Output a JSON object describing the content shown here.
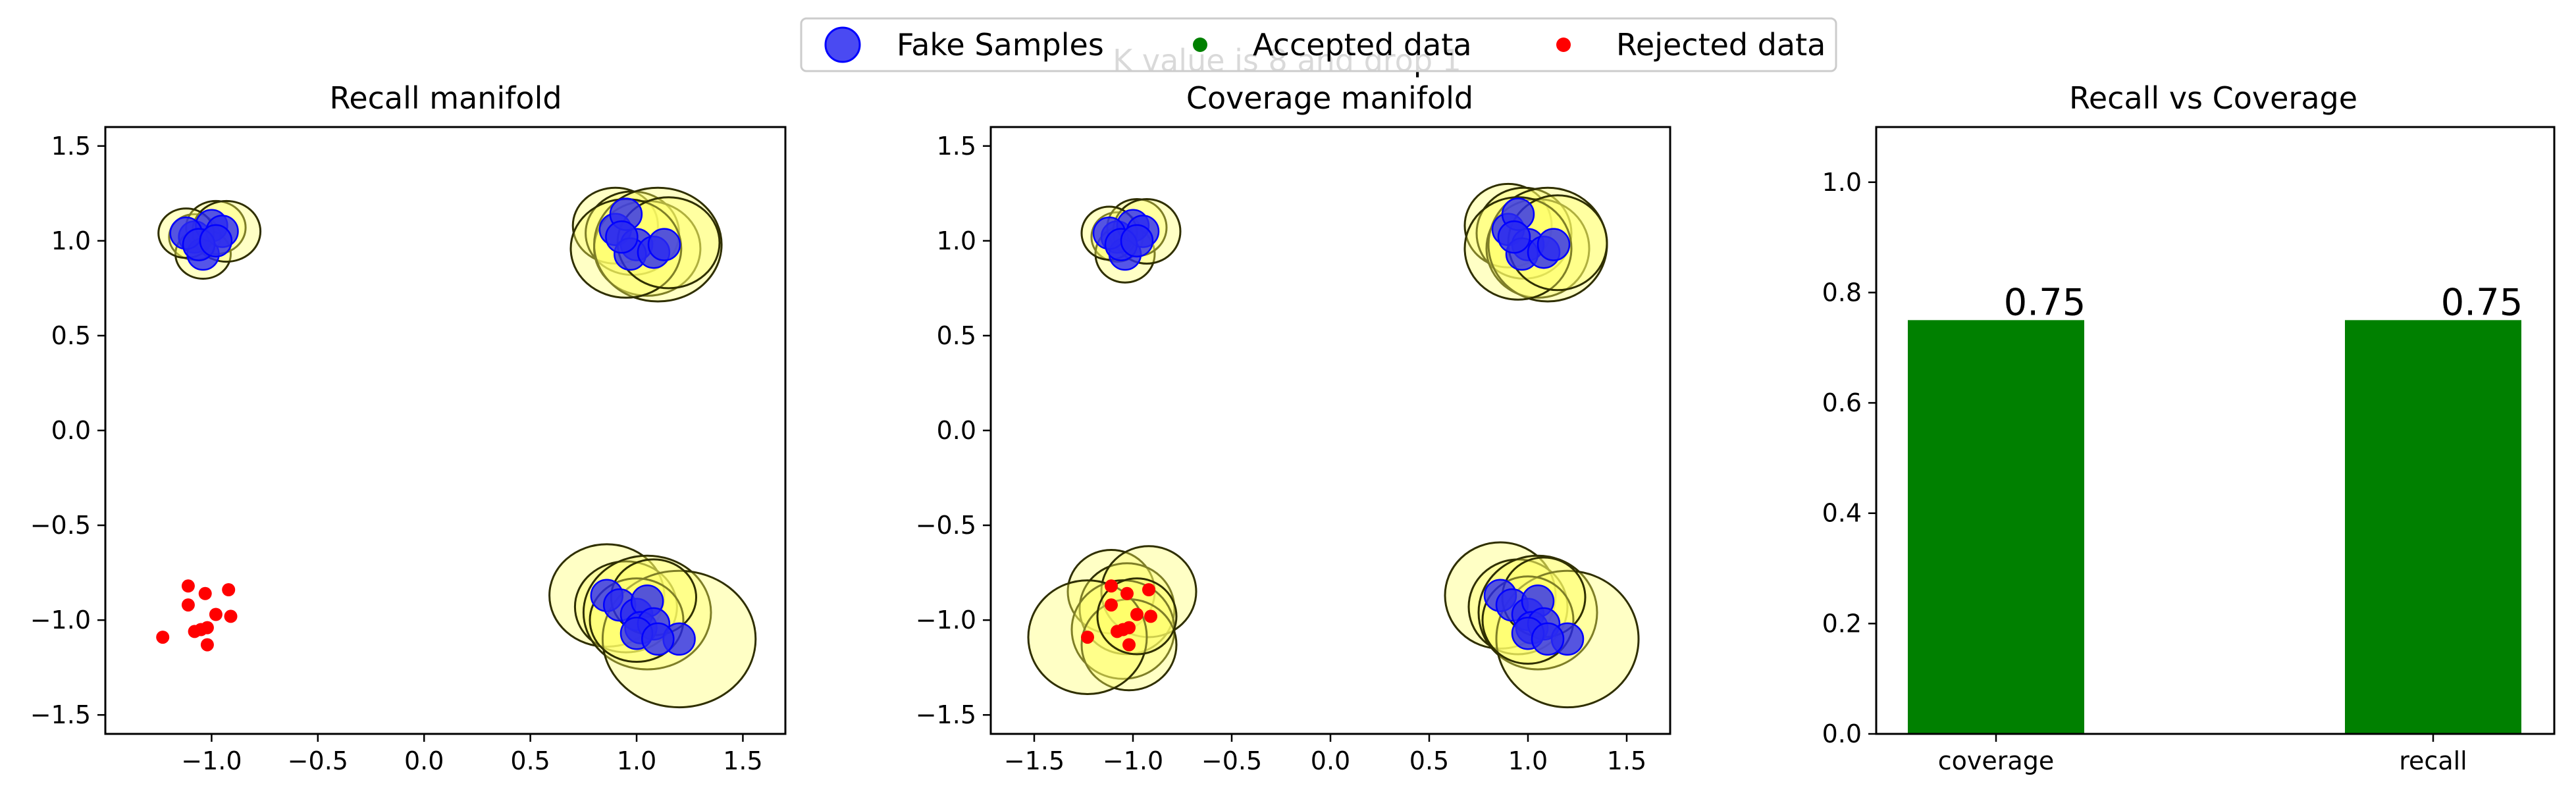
{
  "suptitle": "K value is 8 and drop 1",
  "legend": {
    "location": "top-center",
    "entries": [
      {
        "label": "Fake Samples",
        "color": "#1f1fff",
        "marker": "large-circle"
      },
      {
        "label": "Accepted data",
        "color": "#008000",
        "marker": "small-dot"
      },
      {
        "label": "Rejected data",
        "color": "#ff0000",
        "marker": "small-dot"
      }
    ]
  },
  "colors": {
    "fake_fill": "#2a2af0",
    "fake_edge": "#0000ff",
    "circle_fill": "#ffff66",
    "circle_edge": "#2f2f00",
    "real_rejected": "#ff0000",
    "bar": "#008000"
  },
  "chart_data": [
    {
      "type": "scatter",
      "title": "Recall manifold",
      "xlim": [
        -1.5,
        1.7
      ],
      "ylim": [
        -1.6,
        1.6
      ],
      "xticks": [
        -1.0,
        -0.5,
        0.0,
        0.5,
        1.0,
        1.5
      ],
      "yticks": [
        -1.5,
        -1.0,
        -0.5,
        0.0,
        0.5,
        1.0,
        1.5
      ],
      "xticklabels": [
        "−1.0",
        "−0.5",
        "0.0",
        "0.5",
        "1.0",
        "1.5"
      ],
      "yticklabels": [
        "−1.5",
        "−1.0",
        "−0.5",
        "0.0",
        "0.5",
        "1.0",
        "1.5"
      ],
      "grid": false,
      "circles": {
        "name": "Fake Samples k-NN balls",
        "points": [
          {
            "x": -1.08,
            "y": 1.02,
            "r": 0.12
          },
          {
            "x": -1.04,
            "y": 0.93,
            "r": 0.13
          },
          {
            "x": -0.98,
            "y": 1.07,
            "r": 0.14
          },
          {
            "x": -0.93,
            "y": 1.05,
            "r": 0.16
          },
          {
            "x": -1.12,
            "y": 1.04,
            "r": 0.13
          },
          {
            "x": 0.9,
            "y": 1.08,
            "r": 0.2
          },
          {
            "x": 0.98,
            "y": 1.04,
            "r": 0.22
          },
          {
            "x": 1.05,
            "y": 0.96,
            "r": 0.25
          },
          {
            "x": 1.1,
            "y": 0.98,
            "r": 0.3
          },
          {
            "x": 0.95,
            "y": 0.96,
            "r": 0.26
          },
          {
            "x": 1.15,
            "y": 0.99,
            "r": 0.24
          },
          {
            "x": 0.86,
            "y": -0.87,
            "r": 0.27
          },
          {
            "x": 0.95,
            "y": -0.93,
            "r": 0.24
          },
          {
            "x": 1.05,
            "y": -0.96,
            "r": 0.3
          },
          {
            "x": 1.2,
            "y": -1.1,
            "r": 0.36
          },
          {
            "x": 1.0,
            "y": -1.0,
            "r": 0.22
          },
          {
            "x": 1.08,
            "y": -0.88,
            "r": 0.2
          }
        ]
      },
      "fake": {
        "name": "Fake Samples",
        "points": [
          [
            -1.08,
            1.02
          ],
          [
            -1.04,
            0.93
          ],
          [
            -1.0,
            1.08
          ],
          [
            -0.95,
            1.05
          ],
          [
            -1.12,
            1.04
          ],
          [
            -1.06,
            0.98
          ],
          [
            -0.98,
            1.0
          ],
          [
            0.9,
            1.06
          ],
          [
            0.95,
            1.14
          ],
          [
            1.0,
            0.98
          ],
          [
            0.97,
            0.93
          ],
          [
            1.08,
            0.94
          ],
          [
            1.13,
            0.98
          ],
          [
            0.93,
            1.02
          ],
          [
            0.86,
            -0.87
          ],
          [
            0.92,
            -0.92
          ],
          [
            1.0,
            -0.97
          ],
          [
            1.05,
            -0.9
          ],
          [
            1.02,
            -1.04
          ],
          [
            1.08,
            -1.02
          ],
          [
            1.0,
            -1.07
          ],
          [
            1.2,
            -1.1
          ],
          [
            1.1,
            -1.1
          ]
        ]
      },
      "rejected": {
        "name": "Rejected data",
        "points": [
          [
            -1.11,
            -0.82
          ],
          [
            -1.03,
            -0.86
          ],
          [
            -0.92,
            -0.84
          ],
          [
            -1.11,
            -0.92
          ],
          [
            -0.98,
            -0.97
          ],
          [
            -0.91,
            -0.98
          ],
          [
            -1.05,
            -1.05
          ],
          [
            -1.02,
            -1.04
          ],
          [
            -1.23,
            -1.09
          ],
          [
            -1.02,
            -1.13
          ],
          [
            -1.08,
            -1.06
          ]
        ]
      },
      "accepted": {
        "name": "Accepted data",
        "points": []
      }
    },
    {
      "type": "scatter",
      "title": "Coverage manifold",
      "xlim": [
        -1.72,
        1.72
      ],
      "ylim": [
        -1.6,
        1.6
      ],
      "xticks": [
        -1.5,
        -1.0,
        -0.5,
        0.0,
        0.5,
        1.0,
        1.5
      ],
      "yticks": [
        -1.5,
        -1.0,
        -0.5,
        0.0,
        0.5,
        1.0,
        1.5
      ],
      "xticklabels": [
        "−1.5",
        "−1.0",
        "−0.5",
        "0.0",
        "0.5",
        "1.0",
        "1.5"
      ],
      "yticklabels": [
        "−1.5",
        "−1.0",
        "−0.5",
        "0.0",
        "0.5",
        "1.0",
        "1.5"
      ],
      "grid": false,
      "circles": {
        "name": "Real data k-NN balls",
        "points": [
          {
            "x": -1.08,
            "y": 1.02,
            "r": 0.13
          },
          {
            "x": -1.04,
            "y": 0.93,
            "r": 0.15
          },
          {
            "x": -0.98,
            "y": 1.07,
            "r": 0.15
          },
          {
            "x": -0.93,
            "y": 1.05,
            "r": 0.17
          },
          {
            "x": -1.12,
            "y": 1.04,
            "r": 0.14
          },
          {
            "x": 0.9,
            "y": 1.08,
            "r": 0.22
          },
          {
            "x": 0.98,
            "y": 1.04,
            "r": 0.24
          },
          {
            "x": 1.05,
            "y": 0.96,
            "r": 0.26
          },
          {
            "x": 1.1,
            "y": 0.98,
            "r": 0.3
          },
          {
            "x": 0.95,
            "y": 0.96,
            "r": 0.27
          },
          {
            "x": 1.15,
            "y": 0.99,
            "r": 0.25
          },
          {
            "x": -1.11,
            "y": -0.85,
            "r": 0.22
          },
          {
            "x": -1.03,
            "y": -0.94,
            "r": 0.24
          },
          {
            "x": -0.92,
            "y": -0.85,
            "r": 0.24
          },
          {
            "x": -1.05,
            "y": -1.05,
            "r": 0.26
          },
          {
            "x": -1.02,
            "y": -1.13,
            "r": 0.24
          },
          {
            "x": -1.23,
            "y": -1.09,
            "r": 0.3
          },
          {
            "x": -0.98,
            "y": -0.98,
            "r": 0.2
          },
          {
            "x": 0.86,
            "y": -0.87,
            "r": 0.28
          },
          {
            "x": 0.95,
            "y": -0.93,
            "r": 0.25
          },
          {
            "x": 1.05,
            "y": -0.96,
            "r": 0.3
          },
          {
            "x": 1.2,
            "y": -1.1,
            "r": 0.36
          },
          {
            "x": 1.0,
            "y": -1.0,
            "r": 0.23
          },
          {
            "x": 1.08,
            "y": -0.88,
            "r": 0.21
          }
        ]
      },
      "fake": {
        "name": "Fake Samples",
        "points": [
          [
            -1.08,
            1.02
          ],
          [
            -1.04,
            0.93
          ],
          [
            -1.0,
            1.08
          ],
          [
            -0.95,
            1.05
          ],
          [
            -1.12,
            1.04
          ],
          [
            -1.06,
            0.98
          ],
          [
            -0.98,
            1.0
          ],
          [
            0.9,
            1.06
          ],
          [
            0.95,
            1.14
          ],
          [
            1.0,
            0.98
          ],
          [
            0.97,
            0.93
          ],
          [
            1.08,
            0.94
          ],
          [
            1.13,
            0.98
          ],
          [
            0.93,
            1.02
          ],
          [
            0.86,
            -0.87
          ],
          [
            0.92,
            -0.92
          ],
          [
            1.0,
            -0.97
          ],
          [
            1.05,
            -0.9
          ],
          [
            1.02,
            -1.04
          ],
          [
            1.08,
            -1.02
          ],
          [
            1.0,
            -1.07
          ],
          [
            1.2,
            -1.1
          ],
          [
            1.1,
            -1.1
          ]
        ]
      },
      "rejected": {
        "name": "Rejected data",
        "points": [
          [
            -1.11,
            -0.82
          ],
          [
            -1.03,
            -0.86
          ],
          [
            -0.92,
            -0.84
          ],
          [
            -1.11,
            -0.92
          ],
          [
            -0.98,
            -0.97
          ],
          [
            -0.91,
            -0.98
          ],
          [
            -1.05,
            -1.05
          ],
          [
            -1.02,
            -1.04
          ],
          [
            -1.23,
            -1.09
          ],
          [
            -1.02,
            -1.13
          ],
          [
            -1.08,
            -1.06
          ]
        ]
      },
      "accepted": {
        "name": "Accepted data",
        "points": []
      }
    },
    {
      "type": "bar",
      "title": "Recall vs Coverage",
      "categories": [
        "coverage",
        "recall"
      ],
      "values": [
        0.75,
        0.75
      ],
      "value_labels": [
        "0.75",
        "0.75"
      ],
      "ylim": [
        0.0,
        1.1
      ],
      "yticks": [
        0.0,
        0.2,
        0.4,
        0.6,
        0.8,
        1.0
      ],
      "yticklabels": [
        "0.0",
        "0.2",
        "0.4",
        "0.6",
        "0.8",
        "1.0"
      ],
      "grid": false
    }
  ]
}
